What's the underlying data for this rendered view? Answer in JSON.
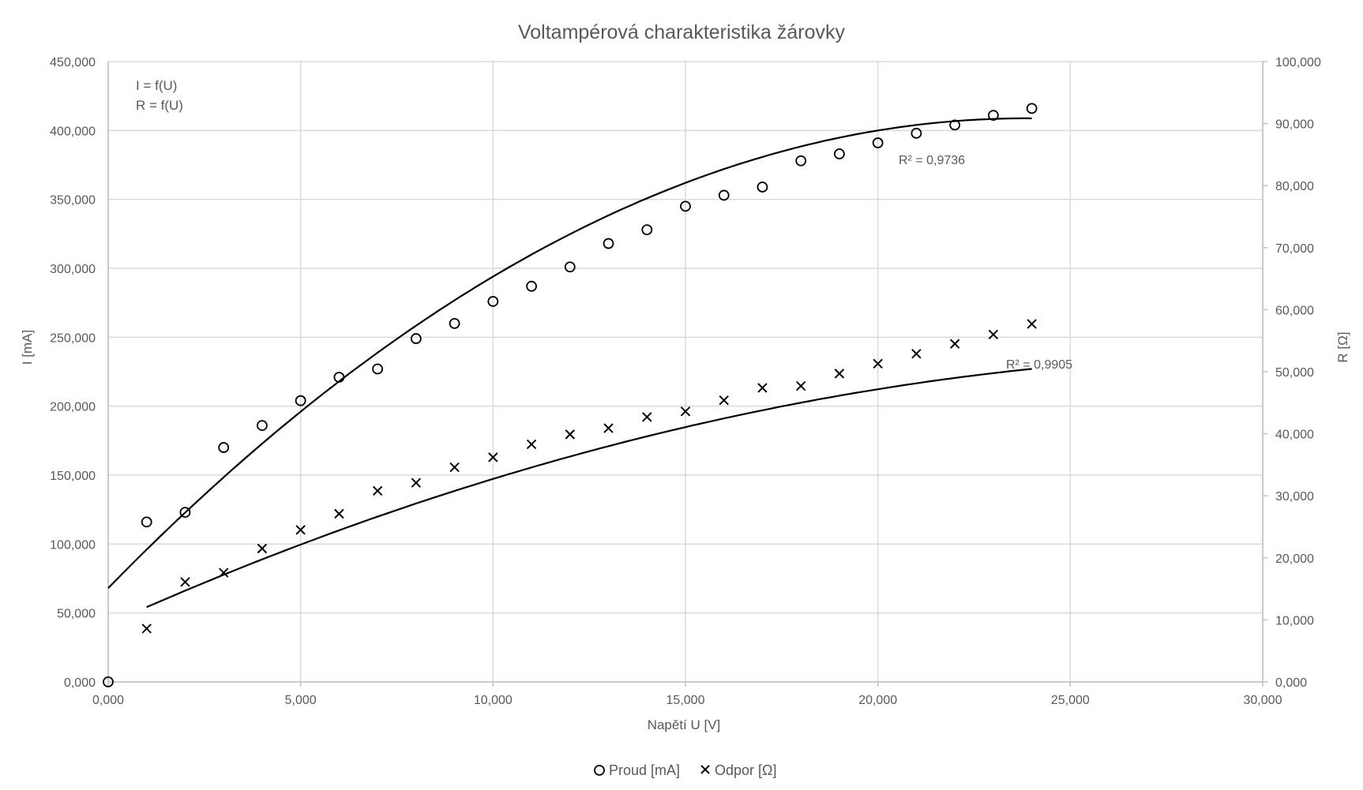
{
  "chart_data": {
    "type": "scatter",
    "title": "Voltampérová charakteristika žárovky",
    "xlabel": "Napětí U [V]",
    "ylabel": "I [mA]",
    "y2label": "R [Ω]",
    "xlim": [
      0,
      30
    ],
    "ylim": [
      0,
      450
    ],
    "y2lim": [
      0,
      100
    ],
    "x_ticks": [
      "0,000",
      "5,000",
      "10,000",
      "15,000",
      "20,000",
      "25,000",
      "30,000"
    ],
    "y_ticks": [
      "0,000",
      "50,000",
      "100,000",
      "150,000",
      "200,000",
      "250,000",
      "300,000",
      "350,000",
      "400,000",
      "450,000"
    ],
    "y2_ticks": [
      "0,000",
      "10,000",
      "20,000",
      "30,000",
      "40,000",
      "50,000",
      "60,000",
      "70,000",
      "80,000",
      "90,000",
      "100,000"
    ],
    "grid": true,
    "legend_position": "bottom",
    "annotations": [
      "I = f(U)",
      "R = f(U)"
    ],
    "series": [
      {
        "name": "Proud [mA]",
        "marker": "circle",
        "axis": "left",
        "x": [
          0,
          1,
          2,
          3,
          4,
          5,
          6,
          7,
          8,
          9,
          10,
          11,
          12,
          13,
          14,
          15,
          16,
          17,
          18,
          19,
          20,
          21,
          22,
          23,
          24
        ],
        "y": [
          0,
          116,
          123,
          170,
          186,
          204,
          221,
          227,
          249,
          260,
          276,
          287,
          301,
          318,
          328,
          345,
          353,
          359,
          378,
          383,
          391,
          398,
          404,
          411,
          416
        ],
        "trendline": {
          "type": "polynomial",
          "r2_label": "R² = 0,9736",
          "coefficients": [
            68,
            28.6,
            -0.6
          ]
        }
      },
      {
        "name": "Odpor [Ω]",
        "marker": "x",
        "axis": "right",
        "x": [
          1,
          2,
          3,
          4,
          5,
          6,
          7,
          8,
          9,
          10,
          11,
          12,
          13,
          14,
          15,
          16,
          17,
          18,
          19,
          20,
          21,
          22,
          23,
          24
        ],
        "y": [
          8.6,
          16.1,
          17.6,
          21.5,
          24.5,
          27.1,
          30.8,
          32.1,
          34.6,
          36.2,
          38.3,
          39.9,
          40.9,
          42.7,
          43.6,
          45.4,
          47.4,
          47.7,
          49.7,
          51.3,
          52.9,
          54.5,
          56.0,
          57.7
        ],
        "trendline": {
          "type": "polynomial",
          "r2_label": "R² = 0,9905",
          "coefficients": [
            9.3,
            2.79,
            -0.0448
          ]
        }
      }
    ]
  }
}
